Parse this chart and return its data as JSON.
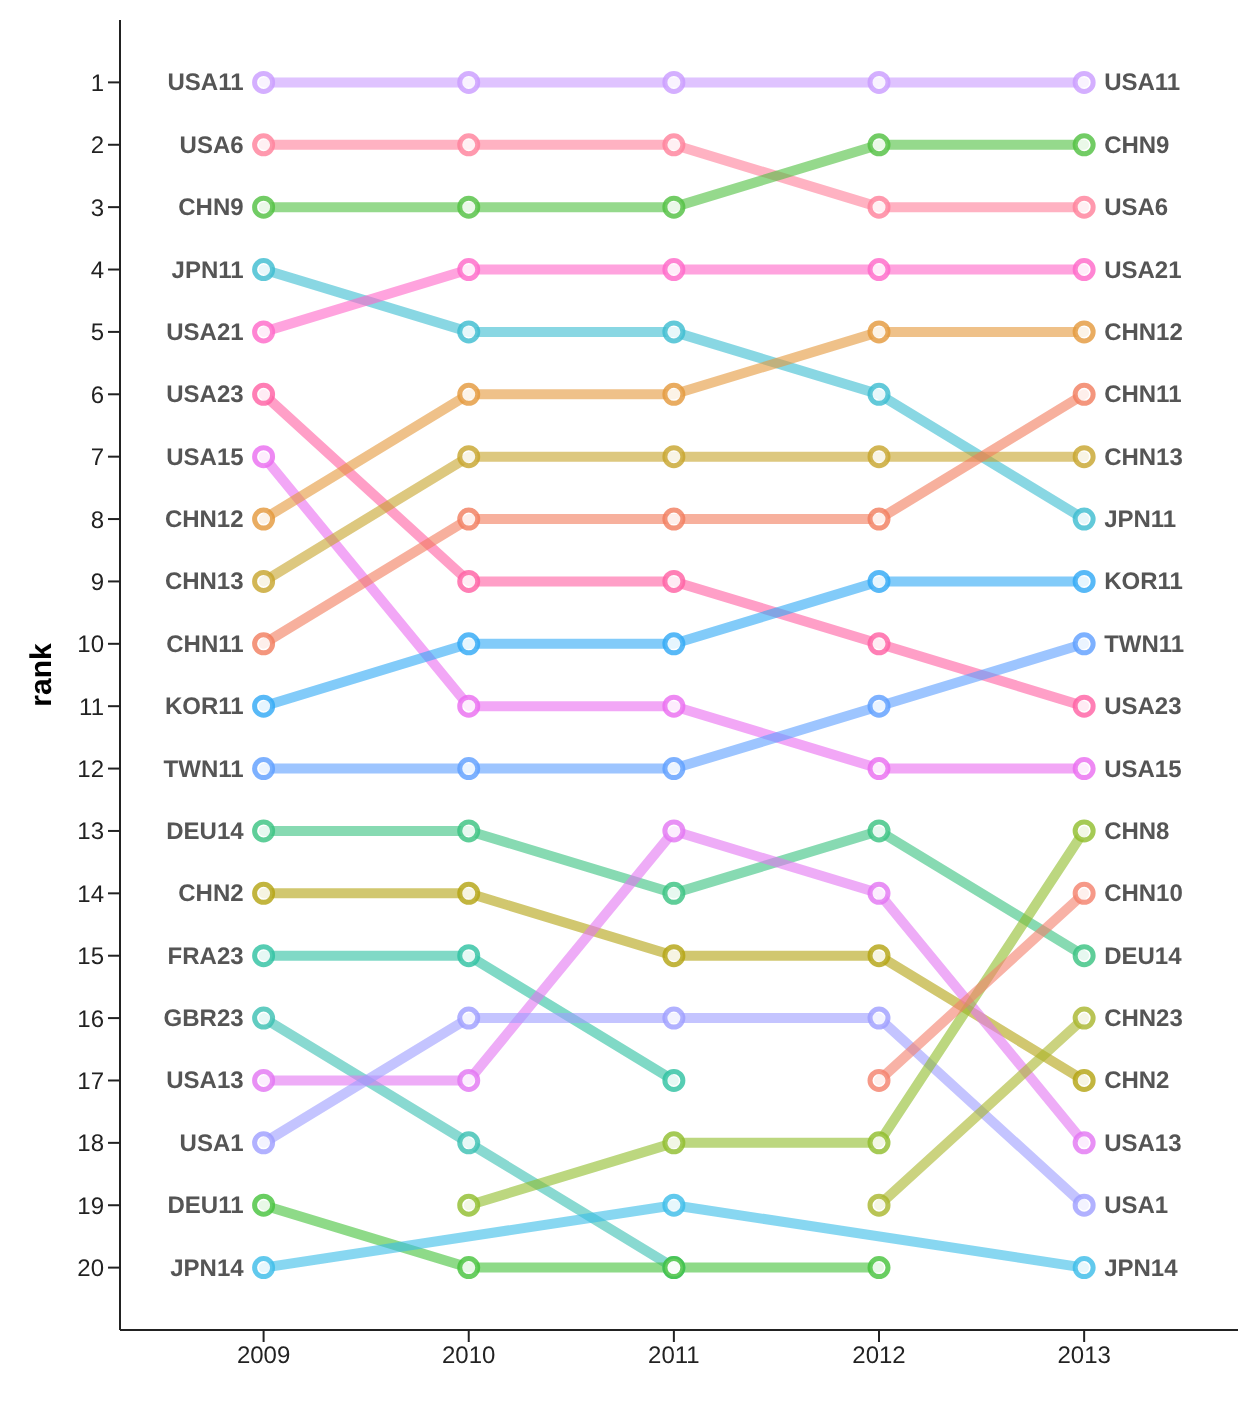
{
  "chart_data": {
    "type": "line",
    "ylabel": "rank",
    "x": [
      2009,
      2010,
      2011,
      2012,
      2013
    ],
    "xlim": [
      2008.3,
      2013.75
    ],
    "xticks": [
      2009,
      2010,
      2011,
      2012,
      2013
    ],
    "ylim": [
      21,
      0
    ],
    "yticks": [
      1,
      2,
      3,
      4,
      5,
      6,
      7,
      8,
      9,
      10,
      11,
      12,
      13,
      14,
      15,
      16,
      17,
      18,
      19,
      20
    ],
    "grid": false,
    "legend": false,
    "marker": "circle",
    "line_style": "solid",
    "series": [
      {
        "name": "USA11",
        "color": "#c99bff",
        "values": [
          1,
          1,
          1,
          1,
          1
        ]
      },
      {
        "name": "USA6",
        "color": "#ff7f9a",
        "values": [
          2,
          2,
          2,
          3,
          3
        ]
      },
      {
        "name": "CHN9",
        "color": "#4fbf3f",
        "values": [
          3,
          3,
          3,
          2,
          2
        ]
      },
      {
        "name": "JPN11",
        "color": "#3bbcd0",
        "values": [
          4,
          5,
          5,
          6,
          8
        ]
      },
      {
        "name": "USA21",
        "color": "#ff66c8",
        "values": [
          5,
          4,
          4,
          4,
          4
        ]
      },
      {
        "name": "USA23",
        "color": "#ff5fa2",
        "values": [
          6,
          9,
          9,
          10,
          11
        ]
      },
      {
        "name": "USA15",
        "color": "#ea6cf0",
        "values": [
          7,
          11,
          11,
          12,
          12
        ]
      },
      {
        "name": "CHN12",
        "color": "#e4973a",
        "values": [
          8,
          6,
          6,
          5,
          5
        ]
      },
      {
        "name": "CHN13",
        "color": "#c7a42a",
        "values": [
          9,
          7,
          7,
          7,
          7
        ]
      },
      {
        "name": "CHN11",
        "color": "#f17c5c",
        "values": [
          10,
          8,
          8,
          8,
          6
        ]
      },
      {
        "name": "KOR11",
        "color": "#2ea8f5",
        "values": [
          11,
          10,
          10,
          9,
          9
        ]
      },
      {
        "name": "TWN11",
        "color": "#5c9eff",
        "values": [
          12,
          12,
          12,
          11,
          10
        ]
      },
      {
        "name": "DEU14",
        "color": "#37c27f",
        "values": [
          13,
          13,
          14,
          13,
          15
        ]
      },
      {
        "name": "CHN2",
        "color": "#b3a20f",
        "values": [
          14,
          14,
          15,
          15,
          17
        ]
      },
      {
        "name": "FRA23",
        "color": "#2cc0a0",
        "values": [
          15,
          15,
          17,
          null,
          null
        ]
      },
      {
        "name": "GBR23",
        "color": "#3abfb2",
        "values": [
          16,
          18,
          20,
          null,
          null
        ]
      },
      {
        "name": "USA13",
        "color": "#e274f2",
        "values": [
          17,
          17,
          13,
          14,
          18
        ]
      },
      {
        "name": "USA1",
        "color": "#9d9dff",
        "values": [
          18,
          16,
          16,
          16,
          19
        ]
      },
      {
        "name": "DEU11",
        "color": "#43c239",
        "values": [
          19,
          20,
          20,
          20,
          null
        ]
      },
      {
        "name": "JPN14",
        "color": "#39bce8",
        "values": [
          20,
          null,
          19,
          null,
          20
        ]
      },
      {
        "name": "CHN8",
        "color": "#8fbd2a",
        "values": [
          null,
          19,
          18,
          18,
          13
        ]
      },
      {
        "name": "CHN10",
        "color": "#f47f6a",
        "values": [
          null,
          null,
          null,
          17,
          14
        ]
      },
      {
        "name": "CHN23",
        "color": "#a8b52a",
        "values": [
          null,
          null,
          null,
          19,
          16
        ]
      }
    ]
  }
}
